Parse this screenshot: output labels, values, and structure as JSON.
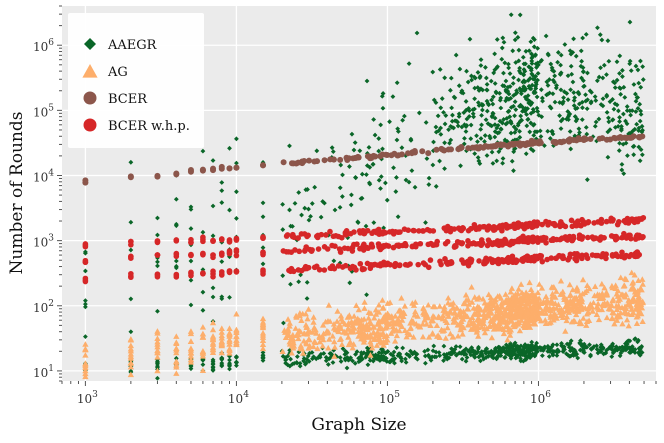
{
  "chart_data": {
    "type": "scatter",
    "title": "",
    "xlabel": "Graph Size",
    "ylabel": "Number of Rounds",
    "xscale": "log",
    "yscale": "log",
    "xlim": [
      700,
      6000000
    ],
    "ylim": [
      7,
      4000000
    ],
    "grid": true,
    "legend_position": "top-left",
    "x_tick_labels": [
      {
        "value": 1000,
        "base": "10",
        "exp": "3"
      },
      {
        "value": 10000,
        "base": "10",
        "exp": "4"
      },
      {
        "value": 100000,
        "base": "10",
        "exp": "5"
      },
      {
        "value": 1000000,
        "base": "10",
        "exp": "6"
      }
    ],
    "y_tick_labels": [
      {
        "value": 10,
        "base": "10",
        "exp": "1"
      },
      {
        "value": 100,
        "base": "10",
        "exp": "2"
      },
      {
        "value": 1000,
        "base": "10",
        "exp": "3"
      },
      {
        "value": 10000,
        "base": "10",
        "exp": "4"
      },
      {
        "value": 100000,
        "base": "10",
        "exp": "5"
      },
      {
        "value": 1000000,
        "base": "10",
        "exp": "6"
      }
    ],
    "sizes": [
      1000,
      2000,
      3000,
      4000,
      5000,
      6000,
      7000,
      8000,
      9000,
      10000,
      15000,
      20000,
      25000,
      30000,
      40000,
      50000,
      60000,
      70000,
      80000,
      90000,
      100000,
      120000,
      150000,
      200000,
      250000,
      300000,
      350000,
      400000,
      450000,
      500000,
      550000,
      600000,
      650000,
      700000,
      750000,
      800000,
      850000,
      900000,
      950000,
      1000000,
      1200000,
      1400000,
      1600000,
      1800000,
      2000000,
      2500000,
      3000000,
      3500000,
      4000000,
      4500000
    ],
    "series": [
      {
        "name": "AAEGR",
        "marker": "diamond",
        "color": "#0a6628",
        "note": "two clusters per size: low (~10-30, median) and high spread (~1e3-2e6 for large graphs)",
        "low_median": [
          11,
          12,
          12.5,
          13,
          13,
          13.5,
          13.5,
          14,
          14,
          14,
          15,
          15,
          15.5,
          16,
          16,
          16.5,
          16.5,
          17,
          17,
          17,
          17,
          17.5,
          18,
          18,
          18.5,
          18.5,
          19,
          19,
          19,
          19.5,
          19.5,
          20,
          20,
          20,
          20,
          20.5,
          20.5,
          20.5,
          21,
          21,
          21,
          21.5,
          21.5,
          22,
          22,
          22,
          22.5,
          22.5,
          23,
          23
        ],
        "high_median": [
          200,
          400,
          500,
          700,
          800,
          900,
          1000,
          1100,
          1200,
          1300,
          1700,
          2000,
          2500,
          3000,
          4000,
          6000,
          8000,
          10000,
          12000,
          15000,
          20000,
          25000,
          35000,
          45000,
          55000,
          65000,
          75000,
          85000,
          95000,
          110000,
          120000,
          130000,
          140000,
          150000,
          160000,
          170000,
          180000,
          190000,
          200000,
          200000,
          190000,
          180000,
          170000,
          160000,
          150000,
          140000,
          130000,
          120000,
          110000,
          100000
        ]
      },
      {
        "name": "AG",
        "marker": "triangle",
        "color": "#fdae6b",
        "median": [
          15,
          18,
          20,
          22,
          24,
          25,
          26,
          27,
          28,
          30,
          32,
          34,
          36,
          38,
          40,
          43,
          45,
          47,
          50,
          52,
          55,
          58,
          60,
          63,
          65,
          67,
          70,
          72,
          74,
          76,
          78,
          80,
          82,
          84,
          86,
          88,
          90,
          92,
          94,
          95,
          98,
          100,
          102,
          104,
          106,
          110,
          112,
          114,
          116,
          118
        ]
      },
      {
        "name": "BCER",
        "marker": "circle",
        "color": "#8c564b",
        "values": [
          8000,
          9500,
          10000,
          10800,
          11500,
          12000,
          12500,
          12800,
          13200,
          13500,
          14500,
          15500,
          16000,
          16800,
          17500,
          18500,
          19000,
          19500,
          20000,
          20500,
          21000,
          22000,
          23000,
          24500,
          25500,
          26500,
          27000,
          27500,
          28000,
          28500,
          29000,
          29500,
          30000,
          30300,
          30600,
          31000,
          31300,
          31600,
          31900,
          32200,
          33000,
          33800,
          34500,
          35000,
          35500,
          36500,
          37500,
          38000,
          38500,
          39000
        ]
      },
      {
        "name": "BCER w.h.p.",
        "marker": "circle",
        "color": "#d62728",
        "bands": [
          {
            "label": "low",
            "values": [
              250,
              280,
              290,
              300,
              305,
              310,
              315,
              320,
              322,
              325,
              340,
              350,
              360,
              370,
              380,
              390,
              400,
              410,
              415,
              420,
              425,
              430,
              440,
              450,
              460,
              470,
              475,
              480,
              485,
              490,
              495,
              500,
              505,
              510,
              515,
              520,
              525,
              530,
              535,
              540,
              550,
              555,
              560,
              565,
              570,
              580,
              590,
              600,
              605,
              610
            ]
          },
          {
            "label": "mid",
            "values": [
              500,
              560,
              580,
              600,
              610,
              620,
              630,
              640,
              650,
              660,
              680,
              700,
              720,
              740,
              760,
              780,
              790,
              800,
              810,
              820,
              830,
              850,
              870,
              890,
              900,
              910,
              920,
              930,
              940,
              950,
              960,
              970,
              980,
              990,
              1000,
              1010,
              1020,
              1030,
              1040,
              1050,
              1070,
              1080,
              1090,
              1100,
              1110,
              1120,
              1130,
              1140,
              1150,
              1160
            ]
          },
          {
            "label": "upper",
            "values": [
              800,
              900,
              950,
              1000,
              1010,
              1020,
              1030,
              1040,
              1050,
              1060,
              1100,
              1150,
              1180,
              1200,
              1250,
              1300,
              1320,
              1340,
              1360,
              1380,
              1400,
              1420,
              1450,
              1480,
              1500,
              1520,
              1540,
              1560,
              1580,
              1600,
              1620,
              1640,
              1660,
              1680,
              1700,
              1720,
              1740,
              1760,
              1780,
              1800,
              1820,
              1840,
              1860,
              1880,
              1900,
              1950,
              2000,
              2050,
              2100,
              2150
            ]
          }
        ]
      }
    ]
  }
}
